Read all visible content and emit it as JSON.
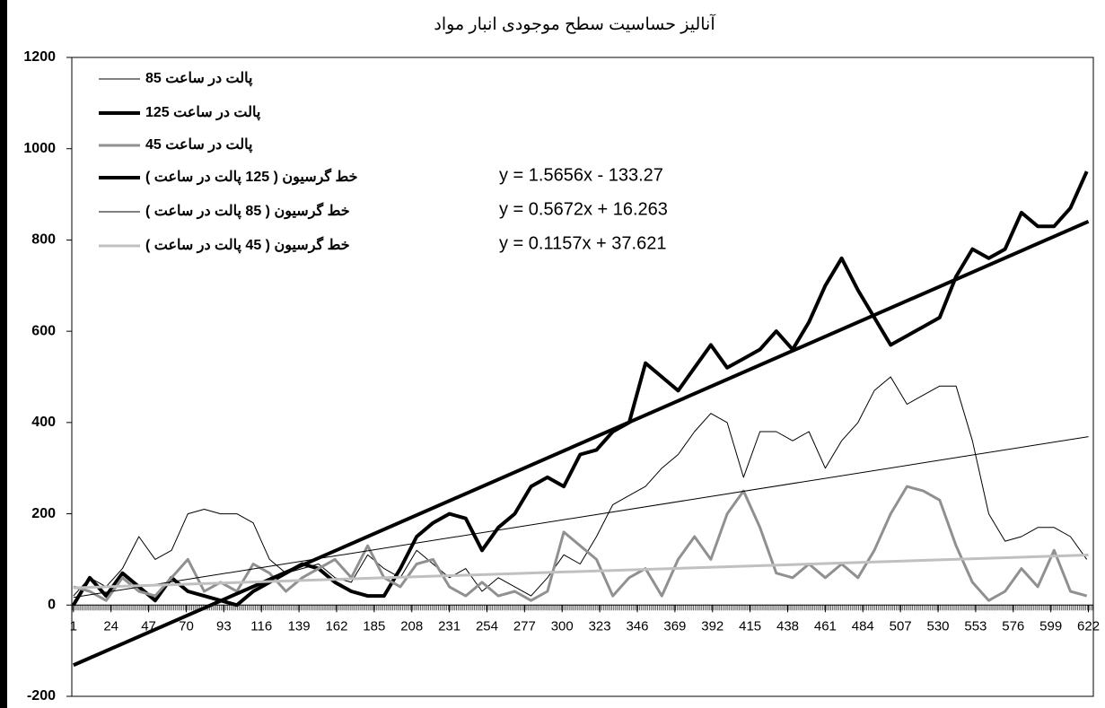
{
  "chart_data": {
    "type": "line",
    "title": "آنالیز حساسیت سطح موجودی انبار مواد",
    "x": [
      1,
      11,
      21,
      31,
      41,
      51,
      61,
      71,
      81,
      91,
      101,
      111,
      121,
      131,
      141,
      151,
      161,
      171,
      181,
      191,
      201,
      211,
      221,
      231,
      241,
      251,
      261,
      271,
      281,
      291,
      301,
      311,
      321,
      331,
      341,
      351,
      361,
      371,
      381,
      391,
      401,
      411,
      421,
      431,
      441,
      451,
      461,
      471,
      481,
      491,
      501,
      511,
      521,
      531,
      541,
      551,
      561,
      571,
      581,
      591,
      601,
      611,
      621
    ],
    "series": [
      {
        "name": "پالت در ساعت 85",
        "color": "#000000",
        "width": 1,
        "values": [
          20,
          60,
          40,
          80,
          150,
          100,
          120,
          200,
          210,
          200,
          200,
          180,
          100,
          70,
          80,
          90,
          60,
          50,
          110,
          80,
          60,
          120,
          90,
          60,
          80,
          30,
          60,
          40,
          20,
          60,
          110,
          90,
          150,
          220,
          240,
          260,
          300,
          330,
          380,
          420,
          400,
          280,
          380,
          380,
          360,
          380,
          300,
          360,
          400,
          470,
          500,
          440,
          460,
          480,
          480,
          360,
          200,
          140,
          150,
          170,
          170,
          150,
          100
        ]
      },
      {
        "name": "پالت در ساعت 125",
        "color": "#000000",
        "width": 4,
        "values": [
          0,
          60,
          20,
          70,
          40,
          10,
          60,
          30,
          20,
          10,
          0,
          30,
          50,
          70,
          90,
          80,
          50,
          30,
          20,
          20,
          80,
          150,
          180,
          200,
          190,
          120,
          170,
          200,
          260,
          280,
          260,
          330,
          340,
          380,
          400,
          530,
          500,
          470,
          520,
          570,
          520,
          540,
          560,
          600,
          560,
          620,
          700,
          760,
          690,
          630,
          570,
          590,
          610,
          630,
          720,
          780,
          760,
          780,
          860,
          830,
          830,
          870,
          950
        ]
      },
      {
        "name": "پالت در ساعت 45",
        "color": "#909090",
        "width": 3,
        "values": [
          40,
          30,
          10,
          60,
          30,
          20,
          60,
          100,
          30,
          50,
          30,
          90,
          70,
          30,
          60,
          80,
          100,
          60,
          130,
          60,
          40,
          90,
          100,
          40,
          20,
          50,
          20,
          30,
          10,
          30,
          160,
          130,
          100,
          20,
          60,
          80,
          20,
          100,
          150,
          100,
          200,
          250,
          170,
          70,
          60,
          90,
          60,
          90,
          60,
          120,
          200,
          260,
          250,
          230,
          130,
          50,
          10,
          30,
          80,
          40,
          120,
          30,
          20
        ]
      }
    ],
    "trendlines": [
      {
        "name": "خط گرسیون ( 125 پالت در ساعت )",
        "equation": "y = 1.5656x - 133.27",
        "slope": 1.5656,
        "intercept": -133.27,
        "color": "#000000",
        "width": 4
      },
      {
        "name": "خط گرسیون ( 85 پالت در ساعت )",
        "equation": "y = 0.5672x + 16.263",
        "slope": 0.5672,
        "intercept": 16.263,
        "color": "#000000",
        "width": 1
      },
      {
        "name": "خط گرسیون ( 45 پالت در ساعت )",
        "equation": "y = 0.1157x + 37.621",
        "slope": 0.1157,
        "intercept": 37.621,
        "color": "#c0c0c0",
        "width": 3
      }
    ],
    "xlim": [
      0,
      625
    ],
    "xticks": [
      1,
      24,
      47,
      70,
      93,
      116,
      139,
      162,
      185,
      208,
      231,
      254,
      277,
      300,
      323,
      346,
      369,
      392,
      415,
      438,
      461,
      484,
      507,
      530,
      553,
      576,
      599,
      622
    ],
    "ylim": [
      -200,
      1200
    ],
    "yticks": [
      -200,
      0,
      200,
      400,
      600,
      800,
      1000,
      1200
    ]
  }
}
